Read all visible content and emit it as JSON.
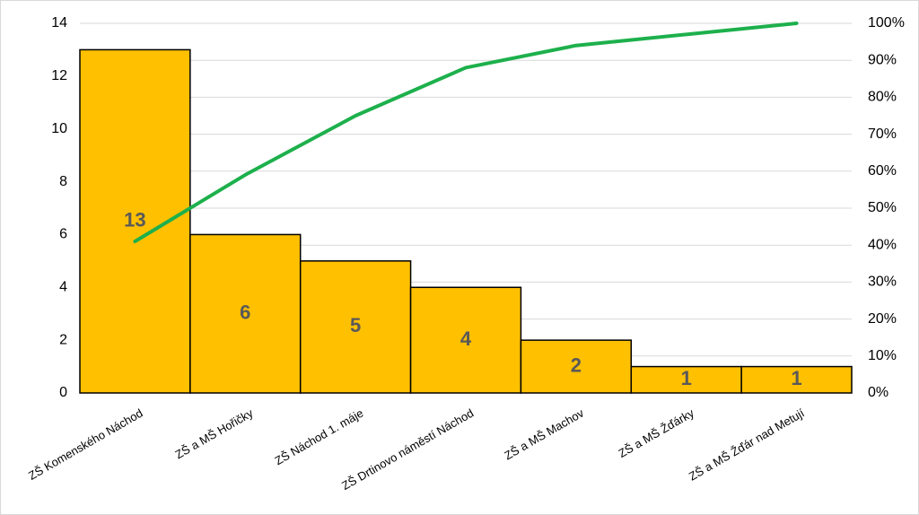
{
  "chart_data": {
    "type": "pareto",
    "categories": [
      "ZŠ Komenského Náchod",
      "ZŠ a MŠ Hořičky",
      "ZŠ Náchod 1. máje",
      "ZŠ Drtinovo náměstí Náchod",
      "ZŠ a MŠ Machov",
      "ZŠ a MŠ Žďárky",
      "ZŠ a MŠ Žďár nad Metují"
    ],
    "values": [
      13,
      6,
      5,
      4,
      2,
      1,
      1
    ],
    "color": "#ffc000",
    "y2_values": [
      41,
      59,
      75,
      88,
      94,
      97,
      100
    ],
    "line_color": "#1db04c",
    "ylim": [
      0,
      14
    ],
    "yticks": [
      0,
      2,
      4,
      6,
      8,
      10,
      12,
      14
    ],
    "y2lim": [
      0,
      100
    ],
    "y2ticks": [
      {
        "value": 0,
        "label": "0%"
      },
      {
        "value": 10,
        "label": "10%"
      },
      {
        "value": 20,
        "label": "20%"
      },
      {
        "value": 30,
        "label": "30%"
      },
      {
        "value": 40,
        "label": "40%"
      },
      {
        "value": 50,
        "label": "50%"
      },
      {
        "value": 60,
        "label": "60%"
      },
      {
        "value": 70,
        "label": "70%"
      },
      {
        "value": 80,
        "label": "80%"
      },
      {
        "value": 90,
        "label": "90%"
      },
      {
        "value": 100,
        "label": "100%"
      }
    ],
    "grid": true
  }
}
